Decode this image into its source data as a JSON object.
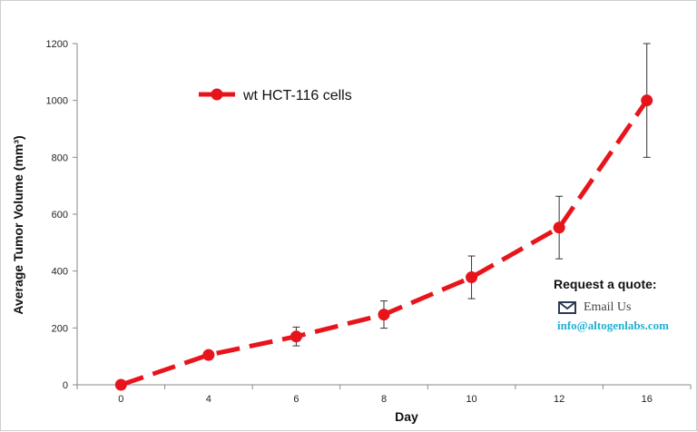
{
  "chart_data": {
    "type": "line",
    "xlabel": "Day",
    "ylabel": "Average Tumor Volume (mm³)",
    "categories": [
      "0",
      "4",
      "6",
      "8",
      "10",
      "12",
      "16"
    ],
    "ylim": [
      0,
      1200
    ],
    "yticks": [
      0,
      200,
      400,
      600,
      800,
      1000,
      1200
    ],
    "grid": false,
    "legend_position": "top-left",
    "series": [
      {
        "name": "wt HCT-116 cells",
        "color": "#e8141b",
        "line_style": "dashed",
        "values": [
          0,
          105,
          170,
          247,
          378,
          553,
          1000
        ],
        "error": [
          0,
          13,
          33,
          48,
          75,
          110,
          200
        ]
      }
    ]
  },
  "contact": {
    "title": "Request a quote:",
    "email_label": "Email Us",
    "email_address": "info@altogenlabs.com",
    "icon": "envelope-icon",
    "accent_color": "#1fb0d0"
  }
}
